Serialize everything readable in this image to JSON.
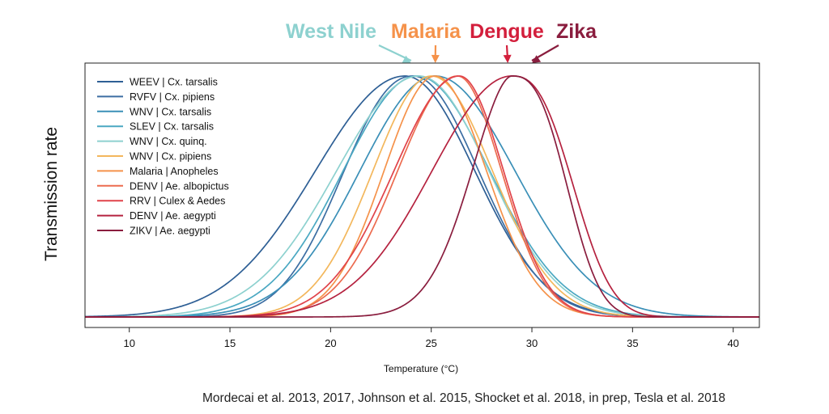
{
  "chart_data": {
    "type": "line",
    "title": "",
    "xlabel": "Temperature (°C)",
    "ylabel": "Transmission rate",
    "xlim": [
      7.8,
      41.3
    ],
    "ylim": [
      0,
      1.02
    ],
    "xticks": [
      10,
      15,
      20,
      25,
      30,
      35,
      40
    ],
    "grid": false,
    "legend_position": "top-left",
    "series": [
      {
        "name": "WEEV | Cx. tarsalis",
        "color": "#2e5f95",
        "peak": 23.7,
        "left_width": 6.3,
        "right_width": 4.9,
        "left_shape": 2.0,
        "right_shape": 2.0
      },
      {
        "name": "RVFV | Cx. pipiens",
        "color": "#3c6ea3",
        "peak": 24.1,
        "left_width": 4.7,
        "right_width": 4.6,
        "left_shape": 2.2,
        "right_shape": 2.0
      },
      {
        "name": "WNV | Cx. tarsalis",
        "color": "#3a8fb7",
        "peak": 25.2,
        "left_width": 5.3,
        "right_width": 5.6,
        "left_shape": 2.0,
        "right_shape": 2.0
      },
      {
        "name": "SLEV | Cx. tarsalis",
        "color": "#4aa8c2",
        "peak": 24.3,
        "left_width": 5.2,
        "right_width": 5.1,
        "left_shape": 2.0,
        "right_shape": 2.0
      },
      {
        "name": "WNV | Cx. quinq.",
        "color": "#8dd1cf",
        "peak": 24.4,
        "left_width": 5.8,
        "right_width": 4.9,
        "left_shape": 2.0,
        "right_shape": 2.0
      },
      {
        "name": "WNV | Cx. pipiens",
        "color": "#f3b75c",
        "peak": 25.0,
        "left_width": 4.1,
        "right_width": 4.3,
        "left_shape": 2.0,
        "right_shape": 2.0
      },
      {
        "name": "Malaria | Anopheles",
        "color": "#f5924a",
        "peak": 25.2,
        "left_width": 3.6,
        "right_width": 3.6,
        "left_shape": 2.0,
        "right_shape": 2.0
      },
      {
        "name": "DENV | Ae. albopictus",
        "color": "#ec6b4f",
        "peak": 26.3,
        "left_width": 4.2,
        "right_width": 3.1,
        "left_shape": 2.0,
        "right_shape": 2.0
      },
      {
        "name": "RRV | Culex & Aedes",
        "color": "#e0434a",
        "peak": 26.4,
        "left_width": 4.6,
        "right_width": 3.1,
        "left_shape": 2.0,
        "right_shape": 2.0
      },
      {
        "name": "DENV | Ae. aegypti",
        "color": "#b5223f",
        "peak": 29.0,
        "left_width": 5.6,
        "right_width": 3.7,
        "left_shape": 2.0,
        "right_shape": 2.6
      },
      {
        "name": "ZIKV | Ae. aegypti",
        "color": "#8a1d3e",
        "peak": 29.0,
        "left_width": 2.9,
        "right_width": 3.3,
        "left_shape": 1.8,
        "right_shape": 2.7
      }
    ],
    "annotations": [
      {
        "text": "West Nile",
        "color": "#8dd1cf",
        "points_to_x": 24.0
      },
      {
        "text": "Malaria",
        "color": "#f5924a",
        "points_to_x": 25.2
      },
      {
        "text": "Dengue",
        "color": "#d31f3c",
        "points_to_x": 28.8
      },
      {
        "text": "Zika",
        "color": "#8a1d3e",
        "points_to_x": 30.0
      }
    ]
  },
  "citation": "Mordecai et al. 2013, 2017, Johnson et al. 2015, Shocket et al. 2018, in prep, Tesla et al. 2018"
}
